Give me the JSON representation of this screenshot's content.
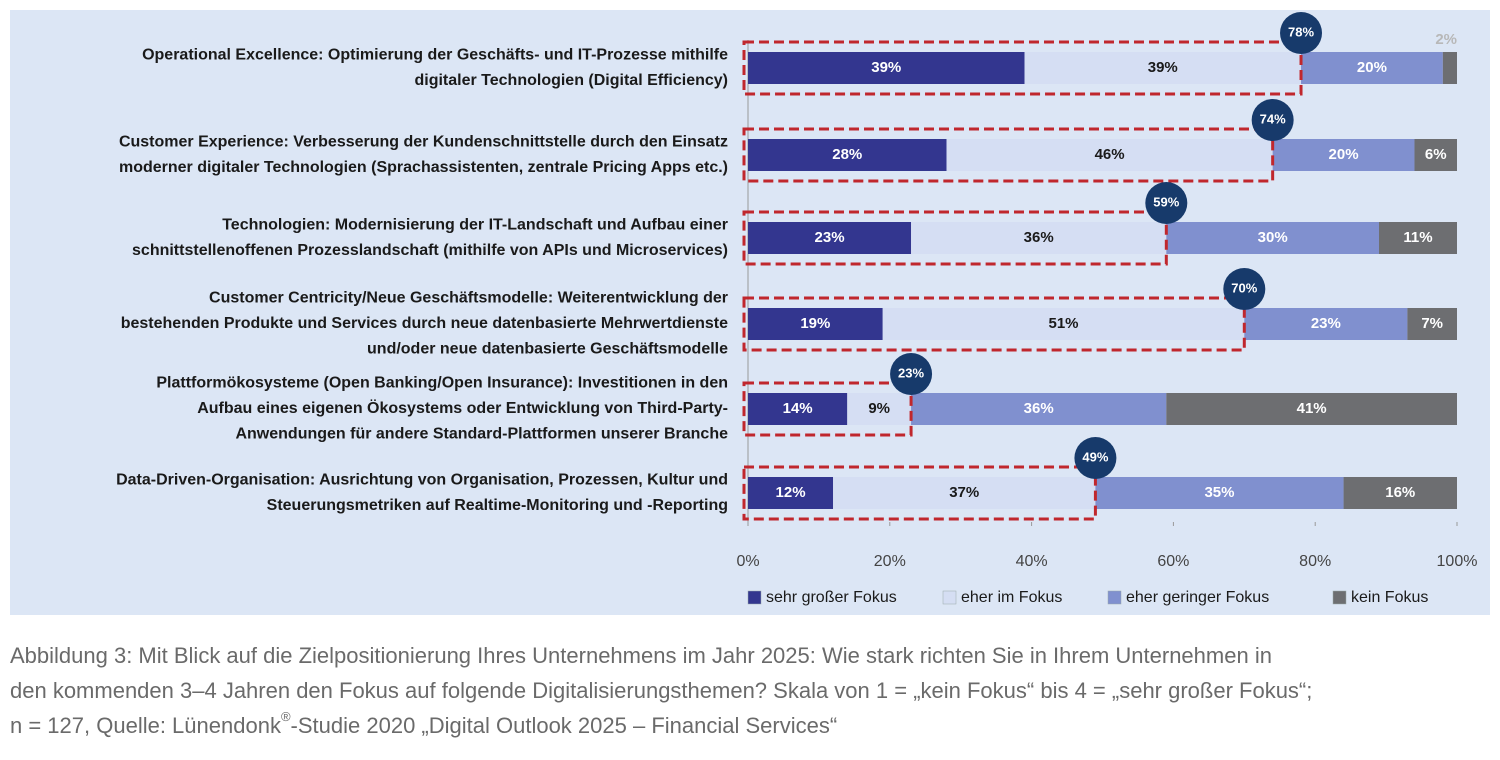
{
  "chart_data": {
    "type": "bar",
    "orientation": "horizontal",
    "stacked": true,
    "categories": [
      [
        "Operational Excellence: Optimierung der Geschäfts- und IT-Prozesse mithilfe",
        "digitaler Technologien (Digital Efficiency)"
      ],
      [
        "Customer Experience: Verbesserung der Kundenschnittstelle durch den Einsatz",
        "moderner digitaler Technologien (Sprachassistenten, zentrale Pricing Apps etc.)"
      ],
      [
        "Technologien: Modernisierung der IT-Landschaft und Aufbau einer",
        "schnittstellenoffenen  Prozesslandschaft (mithilfe von APIs und Microservices)"
      ],
      [
        "Customer Centricity/Neue Geschäftsmodelle: Weiterentwicklung der",
        "bestehenden Produkte und Services durch neue datenbasierte Mehrwertdienste",
        "und/oder neue datenbasierte Geschäftsmodelle"
      ],
      [
        "Plattformökosysteme (Open Banking/Open Insurance): Investitionen in den",
        "Aufbau eines eigenen Ökosystems oder Entwicklung von Third-Party-",
        "Anwendungen für andere Standard-Plattformen unserer Branche"
      ],
      [
        "Data-Driven-Organisation: Ausrichtung von Organisation, Prozessen, Kultur und",
        "Steuerungsmetriken auf Realtime-Monitoring und -Reporting"
      ]
    ],
    "series": [
      {
        "name": "sehr großer Fokus",
        "color": "#33368f",
        "text_color": "#ffffff",
        "values": [
          39,
          28,
          23,
          19,
          14,
          12
        ],
        "value_labels": [
          "39%",
          "28%",
          "23%",
          "19%",
          "14%",
          "12%"
        ]
      },
      {
        "name": "eher im Fokus",
        "color": "#d5def3",
        "text_color": "#1a1a1a",
        "values": [
          39,
          46,
          36,
          51,
          9,
          37
        ],
        "value_labels": [
          "39%",
          "46%",
          "36%",
          "51%",
          "9%",
          "37%"
        ]
      },
      {
        "name": "eher geringer Fokus",
        "color": "#8090cf",
        "text_color": "#ffffff",
        "values": [
          20,
          20,
          30,
          23,
          36,
          35
        ],
        "value_labels": [
          "20%",
          "20%",
          "30%",
          "23%",
          "36%",
          "35%"
        ]
      },
      {
        "name": "kein Fokus",
        "color": "#6d6e71",
        "text_color": "#ffffff",
        "values": [
          2,
          6,
          11,
          7,
          41,
          16
        ],
        "value_labels": [
          "2%",
          "6%",
          "11%",
          "7%",
          "41%",
          "16%"
        ]
      }
    ],
    "top_two_totals": {
      "color": "#173a6b",
      "box_color": "#c0272d",
      "values": [
        78,
        74,
        59,
        70,
        23,
        49
      ],
      "value_labels": [
        "78%",
        "74%",
        "59%",
        "70%",
        "23%",
        "49%"
      ]
    },
    "xlim": [
      0,
      100
    ],
    "xticks": [
      {
        "value": 0,
        "label": "0%"
      },
      {
        "value": 20,
        "label": "20%"
      },
      {
        "value": 40,
        "label": "40%"
      },
      {
        "value": 60,
        "label": "60%"
      },
      {
        "value": 80,
        "label": "80%"
      },
      {
        "value": 100,
        "label": "100%"
      }
    ],
    "legend": "bottom-right",
    "caption": [
      "Abbildung 3: Mit Blick auf die Zielpositionierung Ihres Unternehmens im Jahr 2025: Wie stark richten Sie in Ihrem Unternehmen in",
      "den kommenden 3–4 Jahren den Fokus auf folgende Digitalisierungsthemen? Skala von 1 = „kein Fokus“ bis 4 = „sehr großer Fokus“;",
      "n = 127, Quelle: Lünendonk",
      "®",
      "-Studie 2020 „Digital Outlook 2025 – Financial Services“"
    ]
  }
}
